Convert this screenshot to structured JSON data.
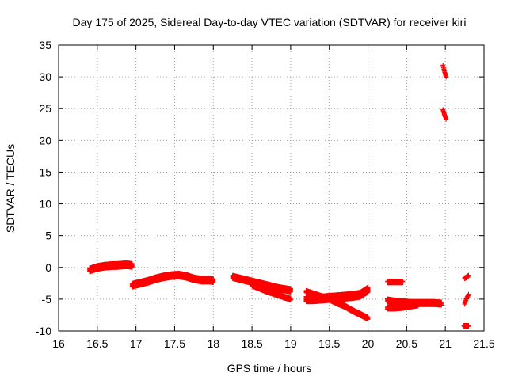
{
  "chart_data": {
    "type": "scatter",
    "title": "Day 175 of 2025, Sidereal Day-to-day VTEC variation (SDTVAR) for receiver kiri",
    "xlabel": "GPS time / hours",
    "ylabel": "SDTVAR / TECUs",
    "xlim": [
      16,
      21.5
    ],
    "ylim": [
      -10,
      35
    ],
    "xticks": [
      16,
      16.5,
      17,
      17.5,
      18,
      18.5,
      19,
      19.5,
      20,
      20.5,
      21,
      21.5
    ],
    "xtick_labels": [
      "16",
      "16.5",
      "17",
      "17.5",
      "18",
      "18.5",
      "19",
      "19.5",
      "20",
      "20.5",
      "21",
      "21.5"
    ],
    "yticks": [
      -10,
      -5,
      0,
      5,
      10,
      15,
      20,
      25,
      30,
      35
    ],
    "ytick_labels": [
      "-10",
      "-5",
      "0",
      "5",
      "10",
      "15",
      "20",
      "25",
      "30",
      "35"
    ],
    "grid": true,
    "marker": "plus",
    "color": "#ff0000",
    "series": [
      {
        "name": "segment-16.4-16.95",
        "x": [
          16.4,
          16.45,
          16.5,
          16.55,
          16.6,
          16.65,
          16.7,
          16.75,
          16.8,
          16.85,
          16.9,
          16.95
        ],
        "y": [
          -0.4,
          -0.2,
          0.0,
          0.1,
          0.2,
          0.25,
          0.3,
          0.3,
          0.35,
          0.4,
          0.4,
          0.3
        ],
        "spread": 0.6
      },
      {
        "name": "segment-16.95-18.0",
        "x": [
          16.95,
          17.05,
          17.15,
          17.25,
          17.35,
          17.45,
          17.55,
          17.65,
          17.75,
          17.85,
          17.95,
          18.0
        ],
        "y": [
          -2.8,
          -2.5,
          -2.2,
          -1.8,
          -1.5,
          -1.3,
          -1.2,
          -1.4,
          -1.8,
          -2.0,
          -2.0,
          -2.1
        ],
        "spread": 0.6
      },
      {
        "name": "segment-18.25-19.0",
        "x": [
          18.25,
          18.35,
          18.45,
          18.55,
          18.65,
          18.75,
          18.85,
          18.95,
          19.0
        ],
        "y": [
          -1.5,
          -1.8,
          -2.1,
          -2.4,
          -2.7,
          -3.0,
          -3.3,
          -3.5,
          -3.6
        ],
        "spread": 0.55
      },
      {
        "name": "segment-18.5-19.0-lower",
        "x": [
          18.5,
          18.6,
          18.7,
          18.8,
          18.9,
          19.0
        ],
        "y": [
          -2.8,
          -3.3,
          -3.8,
          -4.2,
          -4.6,
          -5.0
        ],
        "spread": 0.3
      },
      {
        "name": "segment-19.2-20.0-a",
        "x": [
          19.2,
          19.3,
          19.4,
          19.5,
          19.6,
          19.7,
          19.8,
          19.9,
          20.0
        ],
        "y": [
          -3.8,
          -4.2,
          -4.6,
          -5.0,
          -5.6,
          -6.1,
          -6.8,
          -7.4,
          -8.0
        ],
        "spread": 0.35
      },
      {
        "name": "segment-19.2-20.0-b",
        "x": [
          19.2,
          19.3,
          19.4,
          19.5,
          19.6,
          19.7,
          19.8,
          19.9,
          20.0
        ],
        "y": [
          -5.0,
          -5.0,
          -4.9,
          -4.8,
          -4.7,
          -4.6,
          -4.5,
          -4.3,
          -3.5
        ],
        "spread": 0.8
      },
      {
        "name": "segment-20.25-20.45",
        "x": [
          20.25,
          20.3,
          20.35,
          20.4,
          20.45
        ],
        "y": [
          -2.3,
          -2.3,
          -2.3,
          -2.3,
          -2.3
        ],
        "spread": 0.25
      },
      {
        "name": "segment-20.25-20.95",
        "x": [
          20.25,
          20.35,
          20.45,
          20.55,
          20.65,
          20.75,
          20.85,
          20.95
        ],
        "y": [
          -5.2,
          -5.4,
          -5.5,
          -5.6,
          -5.6,
          -5.6,
          -5.6,
          -5.7
        ],
        "spread": 0.5
      },
      {
        "name": "segment-20.25-20.65-lower",
        "x": [
          20.25,
          20.35,
          20.45,
          20.55,
          20.65
        ],
        "y": [
          -6.4,
          -6.4,
          -6.3,
          -6.1,
          -5.9
        ],
        "spread": 0.3
      },
      {
        "name": "segment-20.95-21.0-high",
        "x": [
          20.97,
          20.98,
          20.99,
          21.0,
          21.01
        ],
        "y": [
          31.8,
          31.3,
          30.8,
          30.4,
          30.0
        ],
        "spread": 0.1
      },
      {
        "name": "segment-20.95-21.0-mid",
        "x": [
          20.97,
          20.98,
          20.99,
          21.0,
          21.01
        ],
        "y": [
          24.8,
          24.4,
          24.0,
          23.7,
          23.4
        ],
        "spread": 0.1
      },
      {
        "name": "segment-21.25-21.3-a",
        "x": [
          21.25,
          21.28,
          21.3
        ],
        "y": [
          -1.7,
          -1.5,
          -1.3
        ],
        "spread": 0.15
      },
      {
        "name": "segment-21.25-21.3-b",
        "x": [
          21.25,
          21.27,
          21.3
        ],
        "y": [
          -5.7,
          -5.0,
          -4.3
        ],
        "spread": 0.15
      },
      {
        "name": "segment-21.25-21.3-c",
        "x": [
          21.24,
          21.27,
          21.3
        ],
        "y": [
          -9.2,
          -9.2,
          -9.2
        ],
        "spread": 0.15
      }
    ]
  }
}
